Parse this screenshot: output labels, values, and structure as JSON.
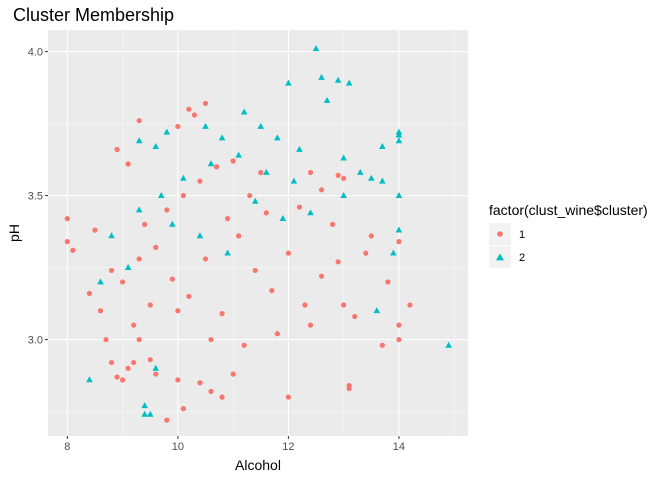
{
  "chart_data": {
    "type": "scatter",
    "title": "Cluster Membership",
    "xlabel": "Alcohol",
    "ylabel": "pH",
    "xlim": [
      7.65,
      15.25
    ],
    "ylim": [
      2.665,
      4.075
    ],
    "x_ticks": [
      8,
      10,
      12,
      14
    ],
    "y_ticks": [
      3.0,
      3.5,
      4.0
    ],
    "x_tick_labels": [
      "8",
      "10",
      "12",
      "14"
    ],
    "y_tick_labels": [
      "3.0",
      "3.5",
      "4.0"
    ],
    "grid": true,
    "legend": {
      "title": "factor(clust_wine$cluster)",
      "position": "right",
      "entries": [
        {
          "label": "1",
          "shape": "circle",
          "color": "#F8766D"
        },
        {
          "label": "2",
          "shape": "triangle",
          "color": "#00BFC4"
        }
      ]
    },
    "colors": {
      "panel": "#EBEBEB",
      "grid_major": "#FFFFFF",
      "grid_minor": "#F7F7F7"
    },
    "series": [
      {
        "name": "1",
        "shape": "circle",
        "color": "#F8766D",
        "points": [
          [
            8.0,
            3.42
          ],
          [
            8.0,
            3.34
          ],
          [
            8.7,
            3.0
          ],
          [
            8.8,
            2.92
          ],
          [
            8.9,
            2.87
          ],
          [
            9.0,
            2.86
          ],
          [
            9.1,
            2.9
          ],
          [
            9.2,
            2.92
          ],
          [
            9.3,
            3.0
          ],
          [
            9.5,
            2.93
          ],
          [
            9.6,
            2.88
          ],
          [
            9.8,
            2.72
          ],
          [
            10.0,
            2.86
          ],
          [
            10.1,
            2.76
          ],
          [
            10.4,
            2.85
          ],
          [
            10.8,
            2.8
          ],
          [
            10.6,
            2.82
          ],
          [
            11.0,
            2.88
          ],
          [
            12.0,
            2.8
          ],
          [
            13.1,
            2.84
          ],
          [
            13.1,
            2.83
          ],
          [
            13.7,
            2.98
          ],
          [
            14.0,
            3.0
          ],
          [
            14.2,
            3.12
          ],
          [
            13.5,
            3.36
          ],
          [
            14.0,
            3.34
          ],
          [
            12.6,
            3.52
          ],
          [
            12.4,
            3.58
          ],
          [
            11.5,
            3.58
          ],
          [
            10.3,
            3.78
          ],
          [
            10.2,
            3.8
          ],
          [
            10.5,
            3.82
          ],
          [
            10.0,
            3.74
          ],
          [
            9.3,
            3.76
          ],
          [
            8.9,
            3.66
          ],
          [
            9.1,
            3.61
          ],
          [
            8.5,
            3.38
          ],
          [
            8.4,
            3.16
          ],
          [
            13.0,
            3.56
          ],
          [
            12.9,
            3.57
          ],
          [
            14.0,
            3.05
          ],
          [
            8.1,
            3.31
          ],
          [
            9.4,
            3.4
          ],
          [
            9.6,
            3.32
          ],
          [
            9.9,
            3.21
          ],
          [
            10.2,
            3.15
          ],
          [
            10.5,
            3.28
          ],
          [
            10.8,
            3.09
          ],
          [
            11.1,
            3.36
          ],
          [
            11.4,
            3.24
          ],
          [
            11.7,
            3.17
          ],
          [
            12.0,
            3.3
          ],
          [
            12.3,
            3.12
          ],
          [
            12.6,
            3.22
          ],
          [
            12.9,
            3.27
          ],
          [
            13.2,
            3.08
          ],
          [
            9.2,
            3.05
          ],
          [
            9.5,
            3.12
          ],
          [
            9.8,
            3.45
          ],
          [
            10.1,
            3.5
          ],
          [
            10.4,
            3.55
          ],
          [
            10.7,
            3.6
          ],
          [
            11.0,
            3.62
          ],
          [
            11.3,
            3.5
          ],
          [
            10.0,
            3.1
          ],
          [
            10.6,
            3.0
          ],
          [
            11.2,
            2.98
          ],
          [
            11.8,
            3.02
          ],
          [
            12.4,
            3.05
          ],
          [
            13.0,
            3.12
          ],
          [
            9.0,
            3.2
          ],
          [
            9.3,
            3.28
          ],
          [
            10.9,
            3.42
          ],
          [
            11.6,
            3.44
          ],
          [
            12.2,
            3.46
          ],
          [
            12.8,
            3.4
          ],
          [
            13.4,
            3.3
          ],
          [
            13.8,
            3.2
          ],
          [
            8.6,
            3.1
          ],
          [
            8.8,
            3.24
          ]
        ]
      },
      {
        "name": "2",
        "shape": "triangle",
        "color": "#00BFC4",
        "points": [
          [
            12.5,
            4.01
          ],
          [
            12.0,
            3.89
          ],
          [
            12.6,
            3.91
          ],
          [
            12.9,
            3.9
          ],
          [
            13.1,
            3.89
          ],
          [
            12.7,
            3.83
          ],
          [
            14.0,
            3.72
          ],
          [
            14.0,
            3.71
          ],
          [
            14.0,
            3.69
          ],
          [
            13.7,
            3.67
          ],
          [
            14.9,
            2.98
          ],
          [
            8.4,
            2.86
          ],
          [
            9.4,
            2.77
          ],
          [
            9.4,
            2.74
          ],
          [
            9.5,
            2.74
          ],
          [
            14.0,
            3.5
          ],
          [
            14.0,
            3.38
          ],
          [
            13.5,
            3.56
          ],
          [
            13.7,
            3.55
          ],
          [
            11.2,
            3.79
          ],
          [
            11.5,
            3.74
          ],
          [
            11.8,
            3.7
          ],
          [
            12.2,
            3.66
          ],
          [
            9.3,
            3.69
          ],
          [
            9.6,
            3.67
          ],
          [
            9.8,
            3.72
          ],
          [
            10.5,
            3.74
          ],
          [
            10.8,
            3.7
          ],
          [
            13.0,
            3.63
          ],
          [
            13.3,
            3.58
          ],
          [
            9.7,
            3.5
          ],
          [
            10.1,
            3.56
          ],
          [
            10.6,
            3.61
          ],
          [
            11.1,
            3.64
          ],
          [
            11.6,
            3.58
          ],
          [
            12.1,
            3.55
          ],
          [
            9.3,
            3.45
          ],
          [
            9.9,
            3.4
          ],
          [
            10.4,
            3.36
          ],
          [
            10.9,
            3.3
          ],
          [
            11.4,
            3.48
          ],
          [
            11.9,
            3.42
          ],
          [
            12.4,
            3.44
          ],
          [
            13.0,
            3.5
          ],
          [
            8.6,
            3.2
          ],
          [
            9.1,
            3.25
          ],
          [
            9.6,
            2.9
          ],
          [
            13.6,
            3.1
          ],
          [
            13.9,
            3.3
          ],
          [
            8.8,
            3.36
          ]
        ]
      }
    ]
  }
}
